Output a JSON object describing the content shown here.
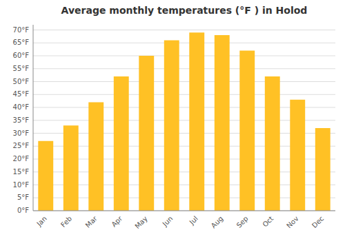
{
  "chart_data": {
    "type": "bar",
    "title": "Average monthly temperatures (°F ) in Holod",
    "categories": [
      "Jan",
      "Feb",
      "Mar",
      "Apr",
      "May",
      "Jun",
      "Jul",
      "Aug",
      "Sep",
      "Oct",
      "Nov",
      "Dec"
    ],
    "values": [
      27,
      33,
      42,
      52,
      60,
      66,
      69,
      68,
      62,
      52,
      43,
      32
    ],
    "color": "#FFC125",
    "ylim": [
      0,
      72
    ],
    "yticks": [
      {
        "value": 0,
        "label": "0°F"
      },
      {
        "value": 5,
        "label": "5°F"
      },
      {
        "value": 10,
        "label": "10°F"
      },
      {
        "value": 15,
        "label": "15°F"
      },
      {
        "value": 20,
        "label": "20°F"
      },
      {
        "value": 25,
        "label": "25°F"
      },
      {
        "value": 30,
        "label": "30°F"
      },
      {
        "value": 35,
        "label": "35°F"
      },
      {
        "value": 40,
        "label": "40°F"
      },
      {
        "value": 45,
        "label": "45°F"
      },
      {
        "value": 50,
        "label": "50°F"
      },
      {
        "value": 55,
        "label": "55°F"
      },
      {
        "value": 60,
        "label": "60°F"
      },
      {
        "value": 65,
        "label": "65°F"
      },
      {
        "value": 70,
        "label": "70°F"
      }
    ],
    "grid": true
  }
}
